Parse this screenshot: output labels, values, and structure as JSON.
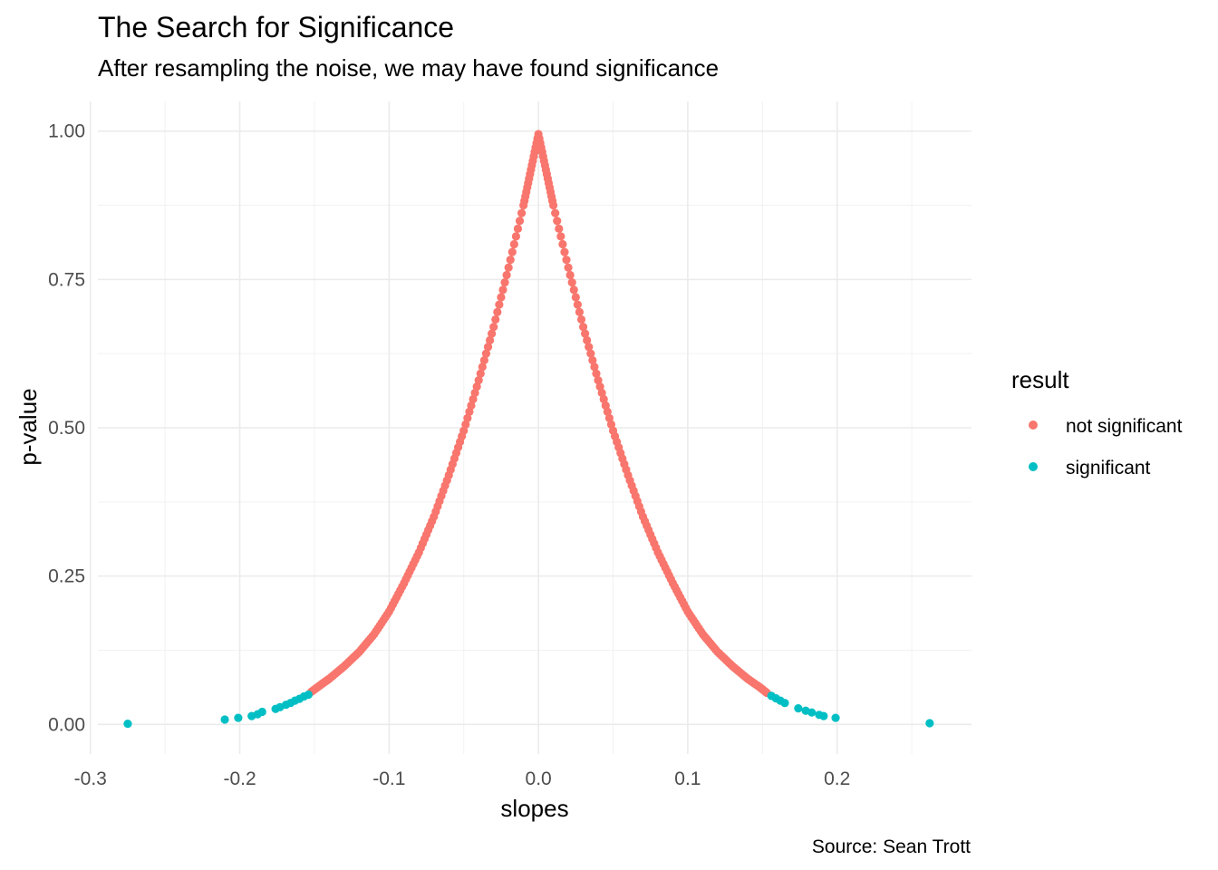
{
  "chart_data": {
    "type": "scatter",
    "title": "The Search for Significance",
    "subtitle": "After resampling the noise, we may have found significance",
    "xlabel": "slopes",
    "ylabel": "p-value",
    "caption": "Source: Sean Trott",
    "xlim": [
      -0.295,
      0.29
    ],
    "ylim": [
      -0.05,
      1.05
    ],
    "x_ticks": [
      -0.3,
      -0.2,
      -0.1,
      0.0,
      0.1,
      0.2
    ],
    "x_tick_labels": [
      "-0.3",
      "-0.2",
      "-0.1",
      "0.0",
      "0.1",
      "0.2"
    ],
    "y_ticks": [
      0.0,
      0.25,
      0.5,
      0.75,
      1.0
    ],
    "y_tick_labels": [
      "0.00",
      "0.25",
      "0.50",
      "0.75",
      "1.00"
    ],
    "grid": true,
    "legend": {
      "title": "result",
      "position": "right",
      "entries": [
        {
          "label": "not significant",
          "color": "#F8766D"
        },
        {
          "label": "significant",
          "color": "#00BFC4"
        }
      ]
    },
    "series": [
      {
        "name": "not significant",
        "color": "#F8766D",
        "x": [
          -0.152,
          -0.145,
          -0.14,
          -0.13,
          -0.12,
          -0.11,
          -0.1,
          -0.09,
          -0.08,
          -0.07,
          -0.06,
          -0.05,
          -0.04,
          -0.03,
          -0.02,
          -0.01,
          -0.005,
          0.0,
          0.005,
          0.01,
          0.02,
          0.03,
          0.04,
          0.05,
          0.06,
          0.07,
          0.08,
          0.09,
          0.1,
          0.11,
          0.12,
          0.13,
          0.14,
          0.148,
          0.153
        ],
        "y": [
          0.055,
          0.068,
          0.077,
          0.098,
          0.122,
          0.152,
          0.19,
          0.238,
          0.29,
          0.35,
          0.42,
          0.495,
          0.58,
          0.67,
          0.77,
          0.875,
          0.935,
          0.995,
          0.935,
          0.875,
          0.77,
          0.67,
          0.58,
          0.495,
          0.42,
          0.35,
          0.29,
          0.238,
          0.19,
          0.152,
          0.122,
          0.098,
          0.077,
          0.063,
          0.053
        ]
      },
      {
        "name": "significant",
        "color": "#00BFC4",
        "x": [
          -0.275,
          -0.21,
          -0.201,
          -0.192,
          -0.188,
          -0.185,
          -0.176,
          -0.173,
          -0.169,
          -0.166,
          -0.163,
          -0.16,
          -0.157,
          -0.154,
          0.156,
          0.159,
          0.162,
          0.165,
          0.174,
          0.179,
          0.183,
          0.188,
          0.191,
          0.199,
          0.262
        ],
        "y": [
          0.001,
          0.008,
          0.011,
          0.014,
          0.017,
          0.021,
          0.026,
          0.029,
          0.033,
          0.036,
          0.04,
          0.043,
          0.047,
          0.05,
          0.048,
          0.044,
          0.04,
          0.036,
          0.027,
          0.023,
          0.02,
          0.016,
          0.014,
          0.011,
          0.002
        ]
      }
    ]
  }
}
